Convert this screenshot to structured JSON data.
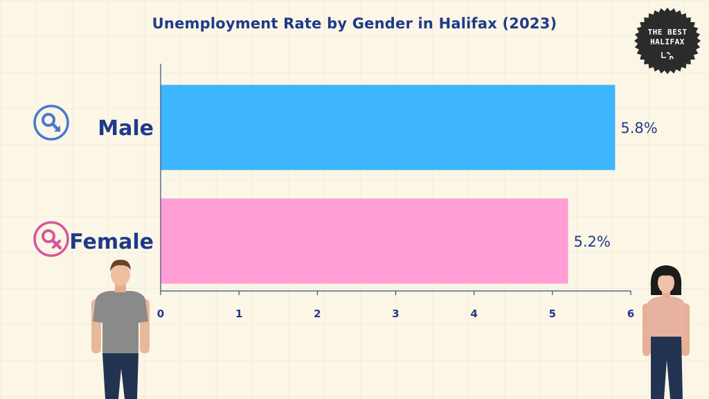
{
  "chart_data": {
    "type": "bar",
    "orientation": "horizontal",
    "title": "Unemployment Rate by Gender in Halifax (2023)",
    "categories": [
      "Male",
      "Female"
    ],
    "values": [
      5.8,
      5.2
    ],
    "value_labels": [
      "5.8%",
      "5.2%"
    ],
    "colors": [
      "#3db6ff",
      "#ff9fd6"
    ],
    "xlim": [
      0,
      6
    ],
    "xticks": [
      "0",
      "1",
      "2",
      "3",
      "4",
      "5",
      "6"
    ],
    "grid": false,
    "legend": "none"
  },
  "logo": {
    "line1": "THE BEST",
    "line2": "HALIFAX"
  },
  "icons": [
    "male-symbol-icon",
    "female-symbol-icon"
  ]
}
